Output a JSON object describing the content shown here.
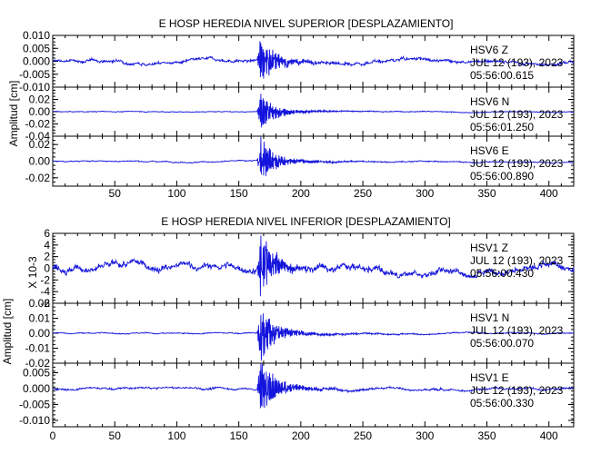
{
  "chart_data": [
    {
      "type": "line",
      "title": "E HOSP HEREDIA NIVEL SUPERIOR [DESPLAZAMIENTO]",
      "ylabel": "Amplitud [cm]",
      "xlim": [
        0,
        420
      ],
      "x_ticks": [
        "50",
        "100",
        "150",
        "200",
        "250",
        "300",
        "350",
        "400"
      ],
      "color": "#1414dc",
      "traces": [
        {
          "station": "HSV6",
          "component": "Z",
          "date": "JUL 12 (193), 2023",
          "time": "05:56:00.615",
          "ylim": [
            -0.01,
            0.01
          ],
          "y_ticks": [
            "0.010",
            "0.005",
            "0.000",
            "-0.005",
            "-0.010"
          ],
          "background_amplitude": 0.0009,
          "peak_amplitude": 0.009,
          "onset_s": 165
        },
        {
          "station": "HSV6",
          "component": "N",
          "date": "JUL 12 (193), 2023",
          "time": "05:56:01.250",
          "ylim": [
            -0.04,
            0.04
          ],
          "y_ticks": [
            "0.02",
            "0.00",
            "-0.02",
            "-0.04"
          ],
          "background_amplitude": 0.001,
          "peak_amplitude": 0.03,
          "onset_s": 165
        },
        {
          "station": "HSV6",
          "component": "E",
          "date": "JUL 12 (193), 2023",
          "time": "05:56:00.890",
          "ylim": [
            -0.03,
            0.03
          ],
          "y_ticks": [
            "0.02",
            "0.00",
            "-0.02"
          ],
          "background_amplitude": 0.001,
          "peak_amplitude": 0.028,
          "onset_s": 165
        }
      ]
    },
    {
      "type": "line",
      "title": "E HOSP HEREDIA NIVEL INFERIOR [DESPLAZAMIENTO]",
      "ylabel": "Amplitud [cm]",
      "scale_label": "X 10-3",
      "xlim": [
        0,
        420
      ],
      "x_ticks": [
        "0",
        "50",
        "100",
        "150",
        "200",
        "250",
        "300",
        "350",
        "400"
      ],
      "color": "#1414dc",
      "traces": [
        {
          "station": "HSV1",
          "component": "Z",
          "date": "JUL 12 (193), 2023",
          "time": "05:56:00.430",
          "ylim": [
            -6,
            6
          ],
          "y_ticks": [
            "6",
            "4",
            "2",
            "0",
            "-2",
            "-4",
            "-6"
          ],
          "background_amplitude": 0.9,
          "peak_amplitude": 5.5,
          "onset_s": 165
        },
        {
          "station": "HSV1",
          "component": "N",
          "date": "JUL 12 (193), 2023",
          "time": "05:56:00.070",
          "ylim": [
            -0.02,
            0.02
          ],
          "y_ticks": [
            "0.02",
            "0.01",
            "0.00",
            "-0.01",
            "-0.02"
          ],
          "background_amplitude": 0.0006,
          "peak_amplitude": 0.019,
          "onset_s": 165
        },
        {
          "station": "HSV1",
          "component": "E",
          "date": "JUL 12 (193), 2023",
          "time": "05:56:00.330",
          "ylim": [
            -0.012,
            0.008
          ],
          "y_ticks": [
            "0.005",
            "0.000",
            "-0.005",
            "-0.010"
          ],
          "background_amplitude": 0.0005,
          "peak_amplitude": 0.01,
          "onset_s": 165
        }
      ]
    }
  ]
}
